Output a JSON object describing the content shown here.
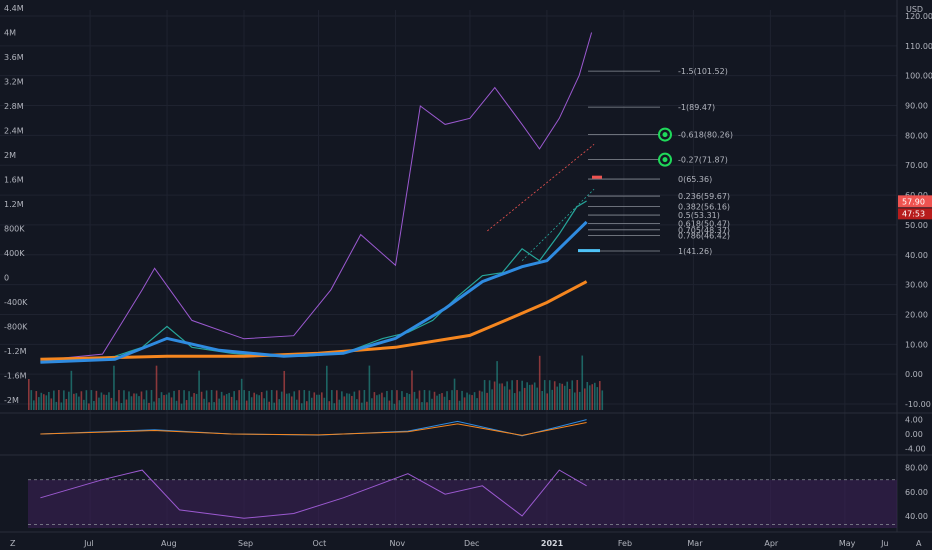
{
  "header": {
    "currency": "USD"
  },
  "colors": {
    "background": "#131722",
    "grid": "#1f2330",
    "price_line": "#9b59d0",
    "ema_fast": "#2f8be0",
    "ema_slow": "#f5861f",
    "up": "#26a69a",
    "down": "#ef5350",
    "rsi_band": "#3a1f55",
    "fib_target": "#1fd95a",
    "text": "#b2b5be"
  },
  "badges": {
    "last_price": "57.90",
    "countdown": "47:53"
  },
  "timeline": {
    "month_labels": [
      "Jul",
      "Aug",
      "Sep",
      "Oct",
      "Nov",
      "Dec",
      "2021",
      "Feb",
      "Mar",
      "Apr",
      "May",
      "Ju"
    ],
    "corner_left": "Z",
    "corner_right": "A"
  },
  "chart_data": [
    {
      "type": "line",
      "panel": "main",
      "right_axis_ticks": [
        "120.00",
        "110.00",
        "100.00",
        "90.00",
        "80.00",
        "70.00",
        "60.00",
        "50.00",
        "40.00",
        "30.00",
        "20.00",
        "10.00",
        "0.00",
        "-10.00"
      ],
      "left_axis_ticks": [
        "4.4M",
        "4M",
        "3.6M",
        "3.2M",
        "2.8M",
        "2.4M",
        "2M",
        "1.6M",
        "1.2M",
        "800K",
        "400K",
        "0",
        "-400K",
        "-800K",
        "-1.2M",
        "-1.6M",
        "-2M"
      ],
      "ylim": [
        -12,
        122
      ],
      "price": {
        "x": [
          "2020-06-25",
          "2020-07-10",
          "2020-07-25",
          "2020-08-05",
          "2020-08-15",
          "2020-08-25",
          "2020-09-10",
          "2020-09-25",
          "2020-10-10",
          "2020-10-25",
          "2020-11-10",
          "2020-11-20",
          "2020-11-30",
          "2020-12-10",
          "2020-12-20",
          "2020-12-28",
          "2021-01-05",
          "2021-01-12",
          "2021-01-20",
          "2021-01-27",
          "2021-01-31"
        ],
        "values": [
          4,
          5,
          6,
          9,
          16,
          9,
          7,
          6,
          6,
          7,
          12,
          14,
          18,
          26,
          33,
          34,
          42,
          38,
          47,
          56,
          58
        ]
      },
      "ema_fast": {
        "x": [
          "2020-06-25",
          "2020-07-25",
          "2020-08-15",
          "2020-09-05",
          "2020-10-01",
          "2020-10-25",
          "2020-11-15",
          "2020-12-05",
          "2020-12-20",
          "2021-01-05",
          "2021-01-15",
          "2021-01-31"
        ],
        "values": [
          4,
          5,
          12,
          8,
          6,
          7,
          12,
          22,
          31,
          36,
          38,
          51
        ]
      },
      "ema_slow": {
        "x": [
          "2020-06-25",
          "2020-08-15",
          "2020-09-15",
          "2020-10-15",
          "2020-11-15",
          "2020-12-15",
          "2021-01-01",
          "2021-01-15",
          "2021-01-31"
        ],
        "values": [
          5,
          6,
          6,
          7,
          9,
          13,
          19,
          24,
          31
        ]
      },
      "fib_levels": [
        {
          "label": "-1.5(101.52)",
          "value": 101.52
        },
        {
          "label": "-1(89.47)",
          "value": 89.47
        },
        {
          "label": "-0.618(80.26)",
          "value": 80.26
        },
        {
          "label": "-0.27(71.87)",
          "value": 71.87
        },
        {
          "label": "0(65.36)",
          "value": 65.36
        },
        {
          "label": "0.236(59.67)",
          "value": 59.67
        },
        {
          "label": "0.382(56.16)",
          "value": 56.16
        },
        {
          "label": "0.5(53.31)",
          "value": 53.31
        },
        {
          "label": "0.618(50.47)",
          "value": 50.47
        },
        {
          "label": "0.705(48.37)",
          "value": 48.37
        },
        {
          "label": "0.786(46.42)",
          "value": 46.42
        },
        {
          "label": "1(41.26)",
          "value": 41.26
        }
      ],
      "volume_overlay": {
        "x": [
          "2020-06-25",
          "2020-07-20",
          "2020-08-05",
          "2020-08-10",
          "2020-08-25",
          "2020-09-15",
          "2020-10-05",
          "2020-10-20",
          "2020-11-01",
          "2020-11-15",
          "2020-11-25",
          "2020-12-05",
          "2020-12-15",
          "2020-12-25",
          "2021-01-05",
          "2021-01-12",
          "2021-01-20",
          "2021-01-28",
          "2021-02-02"
        ],
        "values": [
          -1.35,
          -1.25,
          -0.2,
          0.15,
          -0.7,
          -1.0,
          -0.95,
          -0.2,
          0.7,
          0.2,
          2.8,
          2.5,
          2.6,
          3.1,
          2.5,
          2.1,
          2.6,
          3.3,
          4.0
        ]
      }
    },
    {
      "type": "bar",
      "panel": "volume",
      "x": [
        "2020-07",
        "2020-08",
        "2020-09",
        "2020-10",
        "2020-11",
        "2020-12",
        "2021-01"
      ],
      "values": [
        2,
        4,
        1.5,
        3,
        4,
        3.5,
        5
      ]
    },
    {
      "type": "line",
      "panel": "macd",
      "right_axis_ticks": [
        "4.00",
        "0.00",
        "-4.00"
      ],
      "x": [
        "2020-06-25",
        "2020-08-10",
        "2020-09-10",
        "2020-10-15",
        "2020-11-20",
        "2020-12-10",
        "2021-01-05",
        "2021-01-31"
      ],
      "values": [
        0,
        1.2,
        0,
        -0.3,
        0.8,
        3.5,
        -0.5,
        4
      ]
    },
    {
      "type": "line",
      "panel": "rsi",
      "right_axis_ticks": [
        "80.00",
        "60.00",
        "40.00"
      ],
      "x": [
        "2020-06-25",
        "2020-07-20",
        "2020-08-05",
        "2020-08-20",
        "2020-09-15",
        "2020-10-05",
        "2020-10-25",
        "2020-11-20",
        "2020-12-05",
        "2020-12-20",
        "2021-01-05",
        "2021-01-20",
        "2021-01-31"
      ],
      "values": [
        55,
        70,
        78,
        45,
        38,
        42,
        55,
        75,
        58,
        65,
        40,
        78,
        65
      ]
    }
  ]
}
